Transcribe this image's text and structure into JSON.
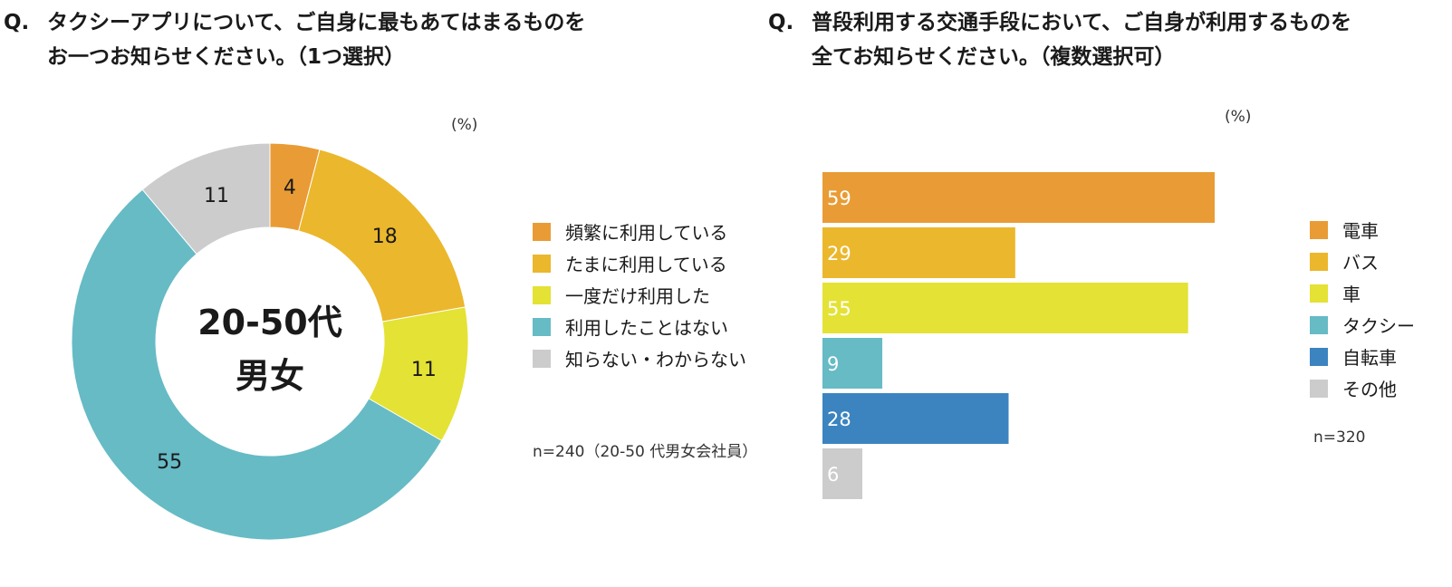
{
  "q1": {
    "mark": "Q.",
    "lines": [
      "タクシーアプリについて、ご自身に最もあてはまるものを",
      "お一つお知らせください。（1つ選択）"
    ],
    "unit": "(%)",
    "note": "n=240（20-50 代男女会社員）",
    "center_lines": [
      "20-50代",
      "男女"
    ]
  },
  "q2": {
    "mark": "Q.",
    "lines": [
      "普段利用する交通手段において、ご自身が利用するものを",
      "全てお知らせください。（複数選択可）"
    ],
    "unit": "(%)",
    "note": "n=320"
  },
  "chart_data": [
    {
      "type": "pie",
      "donut": true,
      "categories": [
        "頻繁に利用している",
        "たまに利用している",
        "一度だけ利用した",
        "利用したことはない",
        "知らない・わからない"
      ],
      "values": [
        4,
        18,
        11,
        55,
        11
      ],
      "colors": [
        "#e99c35",
        "#ebb72c",
        "#e4e234",
        "#66bbc5",
        "#cccccc"
      ],
      "legend_position": "right"
    },
    {
      "type": "bar",
      "orientation": "horizontal",
      "categories": [
        "電車",
        "バス",
        "車",
        "タクシー",
        "自転車",
        "その他"
      ],
      "values": [
        59,
        29,
        55,
        9,
        28,
        6
      ],
      "colors": [
        "#e99c35",
        "#ebb72c",
        "#e4e234",
        "#66bbc5",
        "#3b84c0",
        "#cccccc"
      ],
      "legend_position": "right"
    }
  ]
}
